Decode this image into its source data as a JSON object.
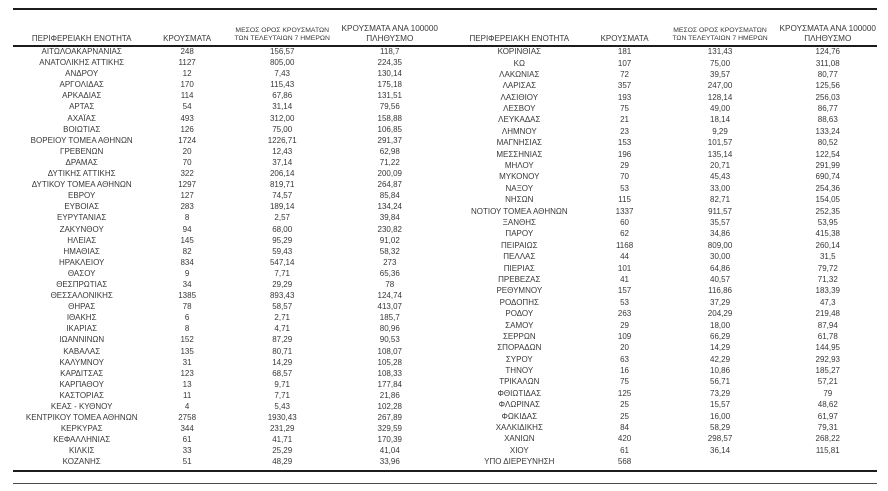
{
  "report": {
    "columns": {
      "region": "ΠΕΡΙΦΕΡΕΙΑΚΗ ΕΝΟΤΗΤΑ",
      "cases": "ΚΡΟΥΣΜΑΤΑ",
      "avg7_line1": "ΜΕΣΟΣ ΟΡΟΣ ΚΡΟΥΣΜΑΤΩΝ",
      "avg7_line2": "ΤΩΝ ΤΕΛΕΥΤΑΙΩΝ 7 ΗΜΕΡΩΝ",
      "per100k_line1": "ΚΡΟΥΣΜΑΤΑ ΑΝΑ 100000",
      "per100k_line2": "ΠΛΗΘΥΣΜΟ"
    },
    "left_table": {
      "rows": [
        [
          "ΑΙΤΩΛΟΑΚΑΡΝΑΝΙΑΣ",
          "248",
          "156,57",
          "118,7"
        ],
        [
          "ΑΝΑΤΟΛΙΚΗΣ ΑΤΤΙΚΗΣ",
          "1127",
          "805,00",
          "224,35"
        ],
        [
          "ΑΝΔΡΟΥ",
          "12",
          "7,43",
          "130,14"
        ],
        [
          "ΑΡΓΟΛΙΔΑΣ",
          "170",
          "115,43",
          "175,18"
        ],
        [
          "ΑΡΚΑΔΙΑΣ",
          "114",
          "67,86",
          "131,51"
        ],
        [
          "ΑΡΤΑΣ",
          "54",
          "31,14",
          "79,56"
        ],
        [
          "ΑΧΑΪΑΣ",
          "493",
          "312,00",
          "158,88"
        ],
        [
          "ΒΟΙΩΤΙΑΣ",
          "126",
          "75,00",
          "106,85"
        ],
        [
          "ΒΟΡΕΙΟΥ ΤΟΜΕΑ ΑΘΗΝΩΝ",
          "1724",
          "1226,71",
          "291,37"
        ],
        [
          "ΓΡΕΒΕΝΩΝ",
          "20",
          "12,43",
          "62,98"
        ],
        [
          "ΔΡΑΜΑΣ",
          "70",
          "37,14",
          "71,22"
        ],
        [
          "ΔΥΤΙΚΗΣ ΑΤΤΙΚΗΣ",
          "322",
          "206,14",
          "200,09"
        ],
        [
          "ΔΥΤΙΚΟΥ ΤΟΜΕΑ ΑΘΗΝΩΝ",
          "1297",
          "819,71",
          "264,87"
        ],
        [
          "ΕΒΡΟΥ",
          "127",
          "74,57",
          "85,84"
        ],
        [
          "ΕΥΒΟΙΑΣ",
          "283",
          "189,14",
          "134,24"
        ],
        [
          "ΕΥΡΥΤΑΝΙΑΣ",
          "8",
          "2,57",
          "39,84"
        ],
        [
          "ΖΑΚΥΝΘΟΥ",
          "94",
          "68,00",
          "230,82"
        ],
        [
          "ΗΛΕΙΑΣ",
          "145",
          "95,29",
          "91,02"
        ],
        [
          "ΗΜΑΘΙΑΣ",
          "82",
          "59,43",
          "58,32"
        ],
        [
          "ΗΡΑΚΛΕΙΟΥ",
          "834",
          "547,14",
          "273"
        ],
        [
          "ΘΑΣΟΥ",
          "9",
          "7,71",
          "65,36"
        ],
        [
          "ΘΕΣΠΡΩΤΙΑΣ",
          "34",
          "29,29",
          "78"
        ],
        [
          "ΘΕΣΣΑΛΟΝΙΚΗΣ",
          "1385",
          "893,43",
          "124,74"
        ],
        [
          "ΘΗΡΑΣ",
          "78",
          "58,57",
          "413,07"
        ],
        [
          "ΙΘΑΚΗΣ",
          "6",
          "2,71",
          "185,7"
        ],
        [
          "ΙΚΑΡΙΑΣ",
          "8",
          "4,71",
          "80,96"
        ],
        [
          "ΙΩΑΝΝΙΝΩΝ",
          "152",
          "87,29",
          "90,53"
        ],
        [
          "ΚΑΒΑΛΑΣ",
          "135",
          "80,71",
          "108,07"
        ],
        [
          "ΚΑΛΥΜΝΟΥ",
          "31",
          "14,29",
          "105,28"
        ],
        [
          "ΚΑΡΔΙΤΣΑΣ",
          "123",
          "68,57",
          "108,33"
        ],
        [
          "ΚΑΡΠΑΘΟΥ",
          "13",
          "9,71",
          "177,84"
        ],
        [
          "ΚΑΣΤΟΡΙΑΣ",
          "11",
          "7,71",
          "21,86"
        ],
        [
          "ΚΕΑΣ - ΚΥΘΝΟΥ",
          "4",
          "5,43",
          "102,28"
        ],
        [
          "ΚΕΝΤΡΙΚΟΥ ΤΟΜΕΑ ΑΘΗΝΩΝ",
          "2758",
          "1930,43",
          "267,89"
        ],
        [
          "ΚΕΡΚΥΡΑΣ",
          "344",
          "231,29",
          "329,59"
        ],
        [
          "ΚΕΦΑΛΛΗΝΙΑΣ",
          "61",
          "41,71",
          "170,39"
        ],
        [
          "ΚΙΛΚΙΣ",
          "33",
          "25,29",
          "41,04"
        ],
        [
          "ΚΟΖΑΝΗΣ",
          "51",
          "48,29",
          "33,96"
        ]
      ]
    },
    "right_table": {
      "rows": [
        [
          "ΚΟΡΙΝΘΙΑΣ",
          "181",
          "131,43",
          "124,76"
        ],
        [
          "ΚΩ",
          "107",
          "75,00",
          "311,08"
        ],
        [
          "ΛΑΚΩΝΙΑΣ",
          "72",
          "39,57",
          "80,77"
        ],
        [
          "ΛΑΡΙΣΑΣ",
          "357",
          "247,00",
          "125,56"
        ],
        [
          "ΛΑΣΙΘΙΟΥ",
          "193",
          "128,14",
          "256,03"
        ],
        [
          "ΛΕΣΒΟΥ",
          "75",
          "49,00",
          "86,77"
        ],
        [
          "ΛΕΥΚΑΔΑΣ",
          "21",
          "18,14",
          "88,63"
        ],
        [
          "ΛΗΜΝΟΥ",
          "23",
          "9,29",
          "133,24"
        ],
        [
          "ΜΑΓΝΗΣΙΑΣ",
          "153",
          "101,57",
          "80,52"
        ],
        [
          "ΜΕΣΣΗΝΙΑΣ",
          "196",
          "135,14",
          "122,54"
        ],
        [
          "ΜΗΛΟΥ",
          "29",
          "20,71",
          "291,99"
        ],
        [
          "ΜΥΚΟΝΟΥ",
          "70",
          "45,43",
          "690,74"
        ],
        [
          "ΝΑΞΟΥ",
          "53",
          "33,00",
          "254,36"
        ],
        [
          "ΝΗΣΩΝ",
          "115",
          "82,71",
          "154,05"
        ],
        [
          "ΝΟΤΙΟΥ ΤΟΜΕΑ ΑΘΗΝΩΝ",
          "1337",
          "911,57",
          "252,35"
        ],
        [
          "ΞΑΝΘΗΣ",
          "60",
          "35,57",
          "53,95"
        ],
        [
          "ΠΑΡΟΥ",
          "62",
          "34,86",
          "415,38"
        ],
        [
          "ΠΕΙΡΑΙΩΣ",
          "1168",
          "809,00",
          "260,14"
        ],
        [
          "ΠΕΛΛΑΣ",
          "44",
          "30,00",
          "31,5"
        ],
        [
          "ΠΙΕΡΙΑΣ",
          "101",
          "64,86",
          "79,72"
        ],
        [
          "ΠΡΕΒΕΖΑΣ",
          "41",
          "40,57",
          "71,32"
        ],
        [
          "ΡΕΘΥΜΝΟΥ",
          "157",
          "116,86",
          "183,39"
        ],
        [
          "ΡΟΔΟΠΗΣ",
          "53",
          "37,29",
          "47,3"
        ],
        [
          "ΡΟΔΟΥ",
          "263",
          "204,29",
          "219,48"
        ],
        [
          "ΣΑΜΟΥ",
          "29",
          "18,00",
          "87,94"
        ],
        [
          "ΣΕΡΡΩΝ",
          "109",
          "66,29",
          "61,78"
        ],
        [
          "ΣΠΟΡΑΔΩΝ",
          "20",
          "14,29",
          "144,95"
        ],
        [
          "ΣΥΡΟΥ",
          "63",
          "42,29",
          "292,93"
        ],
        [
          "ΤΗΝΟΥ",
          "16",
          "10,86",
          "185,27"
        ],
        [
          "ΤΡΙΚΑΛΩΝ",
          "75",
          "56,71",
          "57,21"
        ],
        [
          "ΦΘΙΩΤΙΔΑΣ",
          "125",
          "73,29",
          "79"
        ],
        [
          "ΦΛΩΡΙΝΑΣ",
          "25",
          "15,57",
          "48,62"
        ],
        [
          "ΦΩΚΙΔΑΣ",
          "25",
          "16,00",
          "61,97"
        ],
        [
          "ΧΑΛΚΙΔΙΚΗΣ",
          "84",
          "58,29",
          "79,31"
        ],
        [
          "ΧΑΝΙΩΝ",
          "420",
          "298,57",
          "268,22"
        ],
        [
          "ΧΙΟΥ",
          "61",
          "36,14",
          "115,81"
        ],
        [
          "ΥΠΟ ΔΙΕΡΕΥΝΗΣΗ",
          "568",
          "",
          ""
        ]
      ]
    }
  }
}
